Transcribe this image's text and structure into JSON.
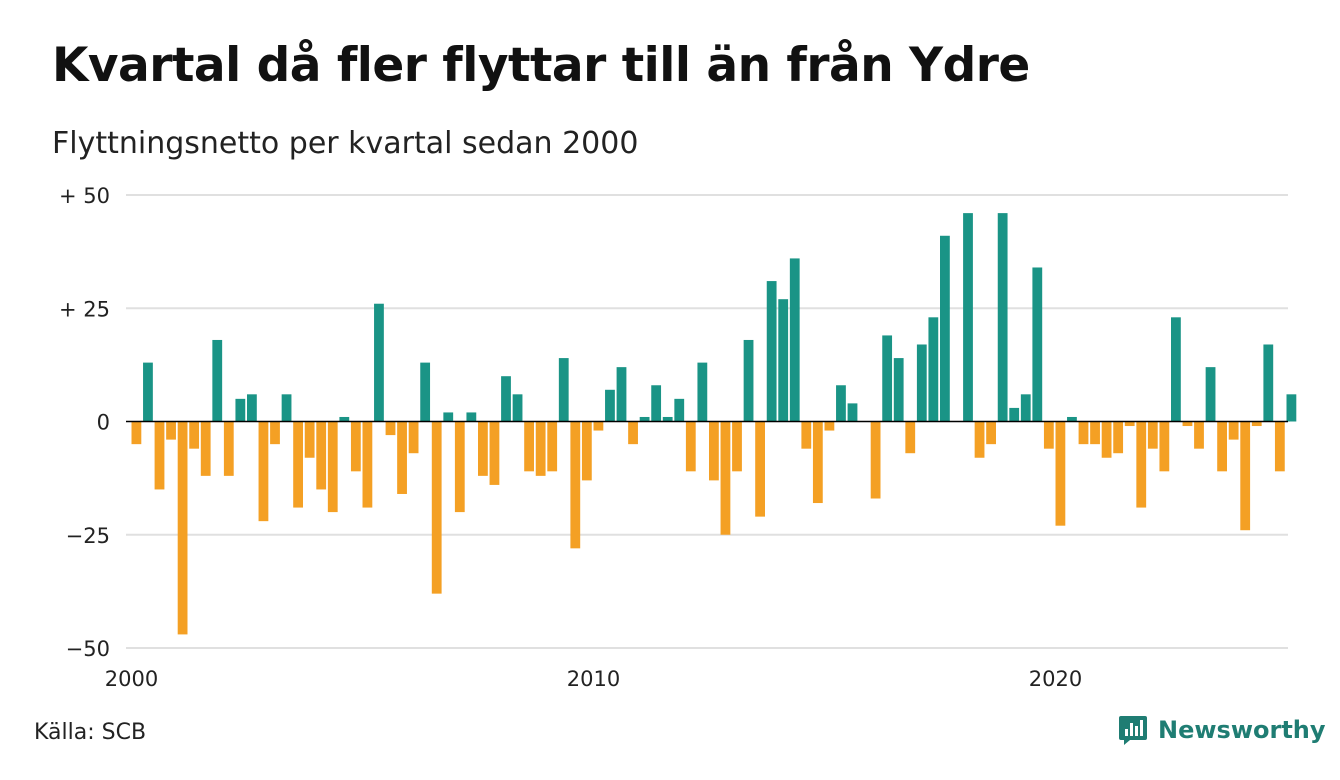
{
  "title": "Kvartal då fler flyttar till än från Ydre",
  "subtitle": "Flyttningsnetto per kvartal sedan 2000",
  "source": "Källa: SCB",
  "brand": {
    "name": "Newsworthy",
    "icon": "bar-chart-logo-icon"
  },
  "colors": {
    "positive": "#1a9486",
    "negative": "#f4a024",
    "grid": "#e0e0e0",
    "zero": "#000000",
    "brand": "#1f7d73"
  },
  "chart_data": {
    "type": "bar",
    "x_start": "2000 Q1",
    "x_interval": "quarter",
    "x_ticks": [
      "2000",
      "2010",
      "2020"
    ],
    "y_ticks": [
      "+ 50",
      "+ 25",
      "0",
      "−25",
      "−50"
    ],
    "ylim": [
      -50,
      50
    ],
    "grid": true,
    "values": [
      -5,
      13,
      -15,
      -4,
      -47,
      -6,
      -12,
      18,
      -12,
      5,
      6,
      -22,
      -5,
      6,
      -19,
      -8,
      -15,
      -20,
      1,
      -11,
      -19,
      26,
      -3,
      -16,
      -7,
      13,
      -38,
      2,
      -20,
      2,
      -12,
      -14,
      10,
      6,
      -11,
      -12,
      -11,
      14,
      -28,
      -13,
      -2,
      7,
      12,
      -5,
      1,
      8,
      1,
      5,
      -11,
      13,
      -13,
      -25,
      -11,
      18,
      -21,
      31,
      27,
      36,
      -6,
      -18,
      -2,
      8,
      4,
      0,
      -17,
      19,
      14,
      -7,
      17,
      23,
      41,
      0,
      46,
      -8,
      -5,
      46,
      3,
      6,
      34,
      -6,
      -23,
      1,
      -5,
      -5,
      -8,
      -7,
      -1,
      -19,
      -6,
      -11,
      23,
      -1,
      -6,
      12,
      -11,
      -4,
      -24,
      -1,
      17,
      -11,
      6
    ]
  }
}
